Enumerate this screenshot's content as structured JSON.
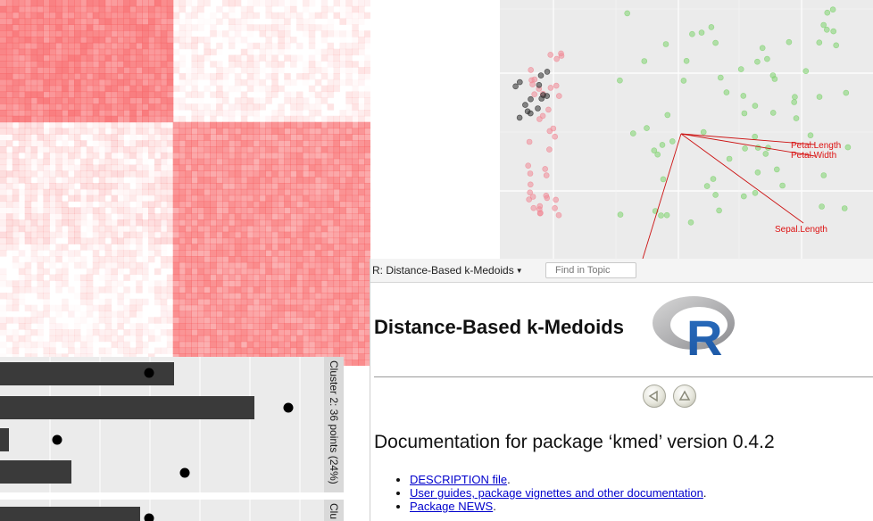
{
  "biplot": {
    "arrows": [
      {
        "label": "Petal.Length"
      },
      {
        "label": "Petal.Width"
      },
      {
        "label": "Sepal.Length"
      }
    ],
    "cluster_colors": {
      "black": "#2b2b2b",
      "pink": "#f08b97",
      "green": "#7fd36f"
    }
  },
  "heatmap": {
    "color_high": "#f8696b",
    "color_low": "#ffffff"
  },
  "barplot": {
    "strips": [
      "Cluster 2: 36 points (24%)",
      "Clu"
    ],
    "bar_color": "#3a3a3a"
  },
  "help": {
    "topic_select": "R: Distance-Based k-Medoids",
    "find_placeholder": "Find in Topic",
    "heading": "Distance-Based k-Medoids",
    "logo_text": "R",
    "doc_title": "Documentation for package ‘kmed’ version 0.4.2",
    "links": [
      {
        "text": "DESCRIPTION file",
        "suffix": "."
      },
      {
        "text": "User guides, package vignettes and other documentation",
        "suffix": "."
      },
      {
        "text": "Package NEWS",
        "suffix": "."
      }
    ]
  }
}
